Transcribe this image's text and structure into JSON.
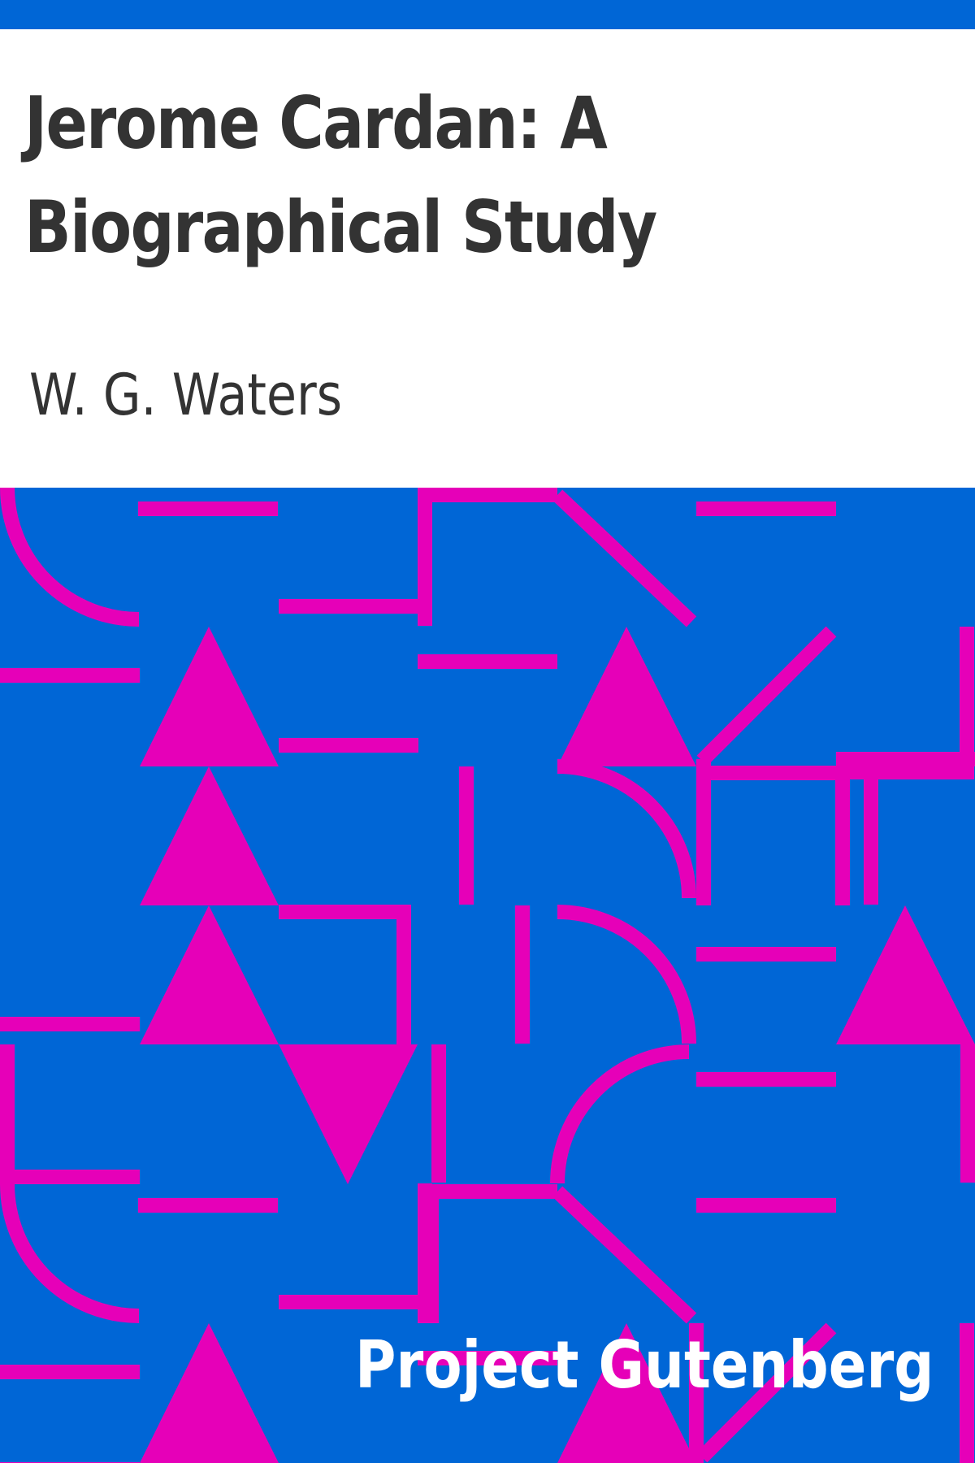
{
  "cover": {
    "title": "Jerome Cardan: A Biographical Study",
    "author": "W. G. Waters",
    "publisher": "Project Gutenberg"
  },
  "colors": {
    "background_band": "#0066d6",
    "pattern_shapes": "#e600b8",
    "title_text": "#333333",
    "publisher_text": "#ffffff"
  }
}
